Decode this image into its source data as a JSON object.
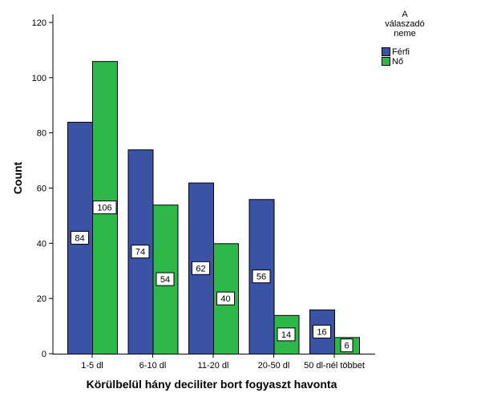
{
  "chart_data": {
    "type": "bar",
    "xlabel": "Körülbelül hány deciliter bort fogyaszt havonta",
    "ylabel": "Count",
    "ylim": [
      0,
      120
    ],
    "yticks": [
      0,
      20,
      40,
      60,
      80,
      100,
      120
    ],
    "categories": [
      "1-5 dl",
      "6-10 dl",
      "11-20 dl",
      "20-50 dl",
      "50 dl-nél többet"
    ],
    "series": [
      {
        "name": "Férfi",
        "values": [
          84,
          74,
          62,
          56,
          16
        ],
        "color": "#3b53a5"
      },
      {
        "name": "Nő",
        "values": [
          106,
          54,
          40,
          14,
          6
        ],
        "color": "#2fb84a"
      }
    ],
    "legend": {
      "title_lines": [
        "A",
        "válaszadó",
        "neme"
      ],
      "placement": "top-right"
    },
    "grid": false
  }
}
